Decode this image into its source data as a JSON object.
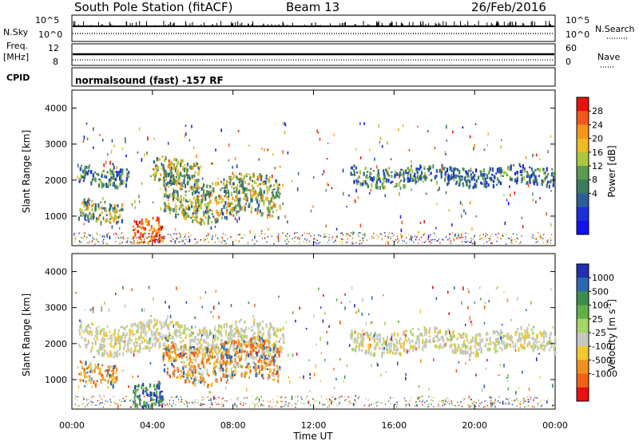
{
  "header": {
    "station": "South Pole Station (fitACF)",
    "beam": "Beam 13",
    "date": "26/Feb/2016"
  },
  "top_panels": {
    "nsky_label": "N.Sky",
    "nsky_ticks": [
      "10^5",
      "10^0"
    ],
    "nsearch_label": "N.Search",
    "nsearch_ticks": [
      "10^5",
      "10^0"
    ],
    "freq_label_line1": "Freq.",
    "freq_label_line2": "[MHz]",
    "freq_ticks": [
      "12",
      "8"
    ],
    "nave_label": "Nave",
    "nave_ticks": [
      "60",
      "0"
    ],
    "cpid_label": "CPID",
    "cpid_text": "normalsound (fast) -157 RF"
  },
  "axes": {
    "ylabel": "Slant Range [km]",
    "xlabel": "Time UT"
  },
  "colorbars": {
    "power": {
      "label": "Power [dB]",
      "ticks": [
        "28",
        "24",
        "20",
        "16",
        "12",
        "8",
        "4"
      ],
      "colors": [
        "#e8120c",
        "#f0581a",
        "#f5941c",
        "#eeba26",
        "#aac840",
        "#5a9a52",
        "#3c7a5e",
        "#2e5e9a",
        "#1a2ed8",
        "#1010f0"
      ]
    },
    "velocity": {
      "label_main": "Velocity [m s",
      "label_exp": "-1",
      "label_close": "]",
      "ticks": [
        "1000",
        "500",
        "100",
        "25",
        "-25",
        "-100",
        "-500",
        "-1000"
      ],
      "colors": [
        "#2030b0",
        "#2c68b0",
        "#3c8c50",
        "#62b048",
        "#a8d46a",
        "#c8c8c0",
        "#f0c830",
        "#f09020",
        "#f06018",
        "#e81010"
      ]
    }
  },
  "chart_data": [
    {
      "type": "heatmap",
      "title": "Power",
      "x_range_hours": [
        0,
        24
      ],
      "y_range_km": [
        180,
        4500
      ],
      "y_ticks": [
        1000,
        2000,
        3000,
        4000
      ],
      "x_ticks": [
        "00:00",
        "04:00",
        "08:00",
        "12:00",
        "16:00",
        "20:00",
        "00:00"
      ],
      "regions": [
        {
          "t0": 0.3,
          "t1": 2.8,
          "r0": 1900,
          "r1": 2400,
          "level": "low-mid"
        },
        {
          "t0": 4.0,
          "t1": 6.3,
          "r0": 1900,
          "r1": 2600,
          "level": "mid-high"
        },
        {
          "t0": 0.3,
          "t1": 2.5,
          "r0": 900,
          "r1": 1500,
          "level": "mid-high"
        },
        {
          "t0": 3.0,
          "t1": 4.5,
          "r0": 200,
          "r1": 900,
          "level": "high"
        },
        {
          "t0": 4.5,
          "t1": 10.3,
          "r0": 1000,
          "r1": 2100,
          "level": "mid"
        },
        {
          "t0": 13.8,
          "t1": 24,
          "r0": 1900,
          "r1": 2400,
          "level": "low-mid"
        }
      ]
    },
    {
      "type": "heatmap",
      "title": "Velocity",
      "x_range_hours": [
        0,
        24
      ],
      "y_range_km": [
        180,
        4500
      ],
      "y_ticks": [
        1000,
        2000,
        3000,
        4000
      ],
      "x_ticks": [
        "00:00",
        "04:00",
        "08:00",
        "12:00",
        "16:00",
        "20:00",
        "00:00"
      ],
      "regions": [
        {
          "t0": 0.3,
          "t1": 10.5,
          "r0": 1800,
          "r1": 2600,
          "level": "near-zero"
        },
        {
          "t0": 0.3,
          "t1": 2.2,
          "r0": 900,
          "r1": 1500,
          "level": "negative"
        },
        {
          "t0": 3.0,
          "t1": 4.5,
          "r0": 200,
          "r1": 900,
          "level": "positive"
        },
        {
          "t0": 4.5,
          "t1": 10.3,
          "r0": 1000,
          "r1": 2100,
          "level": "negative"
        },
        {
          "t0": 13.8,
          "t1": 24,
          "r0": 1800,
          "r1": 2400,
          "level": "near-zero"
        }
      ]
    }
  ]
}
